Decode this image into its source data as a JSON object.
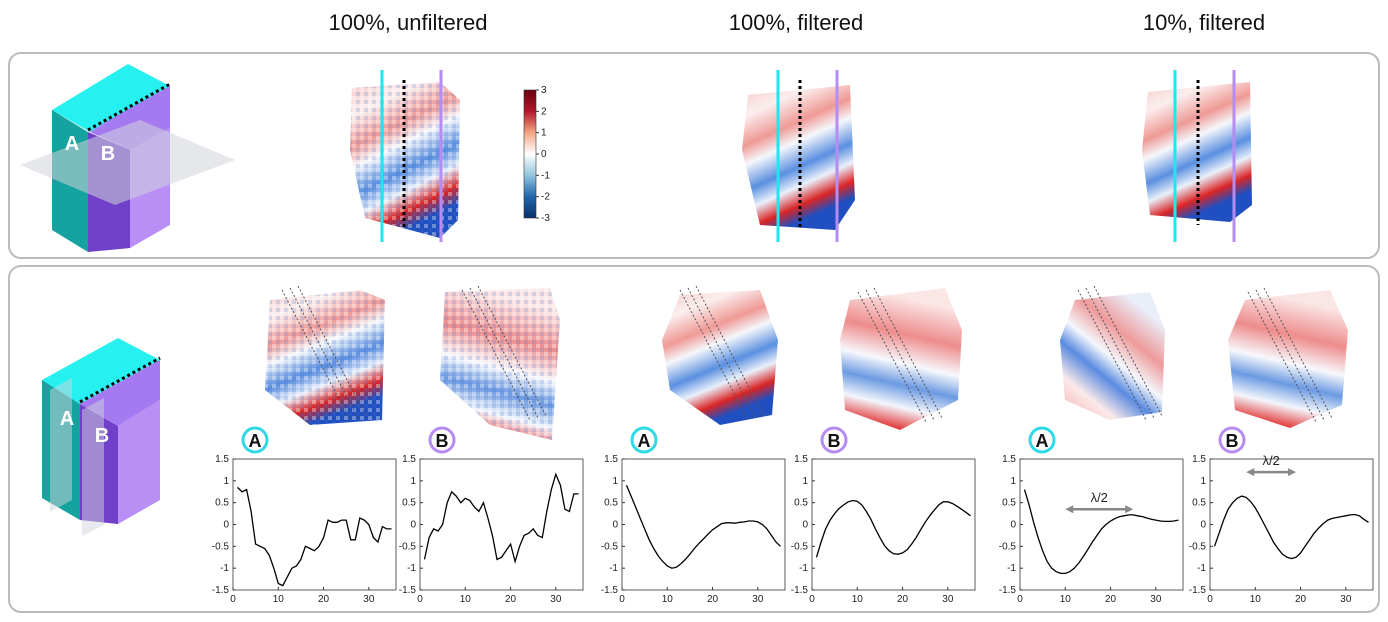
{
  "column_titles": [
    "100%, unfiltered",
    "100%, filtered",
    "10%, filtered"
  ],
  "cube_labels": {
    "top": [
      "A",
      "B"
    ],
    "bottom": [
      "A",
      "B"
    ]
  },
  "colorbar": {
    "lim": [
      -3,
      3
    ],
    "ticks": [
      3,
      2,
      1,
      0,
      -1,
      -2,
      -3
    ],
    "colors": [
      "#08306b",
      "#2166ac",
      "#92c5de",
      "#ffffff",
      "#f4a582",
      "#b2182b",
      "#67000d"
    ]
  },
  "chart_data": [
    {
      "type": "line",
      "label": "A",
      "label_color": "#2fd9e6",
      "color": "#000000",
      "xlim": [
        0,
        36
      ],
      "ylim": [
        -1.5,
        1.5
      ],
      "xticks": [
        0,
        10,
        20,
        30
      ],
      "yticks": [
        -1.5,
        -1,
        -0.5,
        0,
        0.5,
        1,
        1.5
      ],
      "x": [
        1,
        2,
        3,
        4,
        5,
        6,
        7,
        8,
        9,
        10,
        11,
        12,
        13,
        14,
        15,
        16,
        17,
        18,
        19,
        20,
        21,
        22,
        23,
        24,
        25,
        26,
        27,
        28,
        29,
        30,
        31,
        32,
        33,
        34,
        35
      ],
      "values": [
        0.85,
        0.75,
        0.8,
        0.3,
        -0.45,
        -0.5,
        -0.55,
        -0.7,
        -1.0,
        -1.35,
        -1.4,
        -1.2,
        -1.0,
        -0.95,
        -0.8,
        -0.5,
        -0.55,
        -0.6,
        -0.5,
        -0.3,
        0.1,
        0.05,
        0.05,
        0.1,
        0.1,
        -0.35,
        -0.35,
        0.15,
        0.1,
        0,
        -0.3,
        -0.4,
        -0.05,
        -0.1,
        -0.1
      ]
    },
    {
      "type": "line",
      "label": "B",
      "label_color": "#b48cf2",
      "color": "#000000",
      "xlim": [
        0,
        36
      ],
      "ylim": [
        -1.5,
        1.5
      ],
      "xticks": [
        0,
        10,
        20,
        30
      ],
      "yticks": [
        -1.5,
        -1,
        -0.5,
        0,
        0.5,
        1,
        1.5
      ],
      "x": [
        1,
        2,
        3,
        4,
        5,
        6,
        7,
        8,
        9,
        10,
        11,
        12,
        13,
        14,
        15,
        16,
        17,
        18,
        19,
        20,
        21,
        22,
        23,
        24,
        25,
        26,
        27,
        28,
        29,
        30,
        31,
        32,
        33,
        34,
        35
      ],
      "values": [
        -0.8,
        -0.3,
        -0.1,
        -0.15,
        0,
        0.5,
        0.75,
        0.65,
        0.5,
        0.6,
        0.55,
        0.4,
        0.3,
        0.5,
        0.15,
        -0.25,
        -0.8,
        -0.75,
        -0.6,
        -0.45,
        -0.85,
        -0.5,
        -0.25,
        -0.2,
        -0.1,
        -0.25,
        -0.3,
        0.3,
        0.8,
        1.15,
        0.9,
        0.35,
        0.3,
        0.7,
        0.7
      ]
    },
    {
      "type": "line",
      "label": "A",
      "label_color": "#2fd9e6",
      "color": "#000000",
      "xlim": [
        0,
        36
      ],
      "ylim": [
        -1.5,
        1.5
      ],
      "xticks": [
        0,
        10,
        20,
        30
      ],
      "yticks": [
        -1.5,
        -1,
        -0.5,
        0,
        0.5,
        1,
        1.5
      ],
      "x": [
        1,
        2,
        3,
        4,
        5,
        6,
        7,
        8,
        9,
        10,
        11,
        12,
        13,
        14,
        15,
        16,
        17,
        18,
        19,
        20,
        21,
        22,
        23,
        24,
        25,
        26,
        27,
        28,
        29,
        30,
        31,
        32,
        33,
        34,
        35
      ],
      "values": [
        0.9,
        0.65,
        0.4,
        0.15,
        -0.1,
        -0.35,
        -0.55,
        -0.72,
        -0.85,
        -0.95,
        -1.0,
        -0.98,
        -0.9,
        -0.8,
        -0.68,
        -0.55,
        -0.43,
        -0.33,
        -0.22,
        -0.12,
        -0.05,
        0.02,
        0.04,
        0.04,
        0.03,
        0.05,
        0.06,
        0.08,
        0.08,
        0.06,
        0.0,
        -0.1,
        -0.25,
        -0.4,
        -0.5
      ]
    },
    {
      "type": "line",
      "label": "B",
      "label_color": "#b48cf2",
      "color": "#000000",
      "xlim": [
        0,
        36
      ],
      "ylim": [
        -1.5,
        1.5
      ],
      "xticks": [
        0,
        10,
        20,
        30
      ],
      "yticks": [
        -1.5,
        -1,
        -0.5,
        0,
        0.5,
        1,
        1.5
      ],
      "x": [
        1,
        2,
        3,
        4,
        5,
        6,
        7,
        8,
        9,
        10,
        11,
        12,
        13,
        14,
        15,
        16,
        17,
        18,
        19,
        20,
        21,
        22,
        23,
        24,
        25,
        26,
        27,
        28,
        29,
        30,
        31,
        32,
        33,
        34,
        35
      ],
      "values": [
        -0.75,
        -0.4,
        -0.1,
        0.1,
        0.25,
        0.37,
        0.45,
        0.52,
        0.55,
        0.53,
        0.45,
        0.3,
        0.12,
        -0.1,
        -0.3,
        -0.48,
        -0.6,
        -0.67,
        -0.68,
        -0.65,
        -0.58,
        -0.45,
        -0.3,
        -0.12,
        0.05,
        0.2,
        0.33,
        0.45,
        0.52,
        0.52,
        0.48,
        0.42,
        0.35,
        0.28,
        0.2
      ]
    },
    {
      "type": "line",
      "label": "A",
      "label_color": "#2fd9e6",
      "color": "#000000",
      "xlim": [
        0,
        36
      ],
      "ylim": [
        -1.5,
        1.5
      ],
      "xticks": [
        0,
        10,
        20,
        30
      ],
      "yticks": [
        -1.5,
        -1,
        -0.5,
        0,
        0.5,
        1,
        1.5
      ],
      "x": [
        1,
        2,
        3,
        4,
        5,
        6,
        7,
        8,
        9,
        10,
        11,
        12,
        13,
        14,
        15,
        16,
        17,
        18,
        19,
        20,
        21,
        22,
        23,
        24,
        25,
        26,
        27,
        28,
        29,
        30,
        31,
        32,
        33,
        34,
        35
      ],
      "values": [
        0.8,
        0.45,
        0.05,
        -0.3,
        -0.6,
        -0.85,
        -1.0,
        -1.08,
        -1.12,
        -1.12,
        -1.08,
        -1.0,
        -0.88,
        -0.73,
        -0.57,
        -0.4,
        -0.25,
        -0.1,
        0.0,
        0.08,
        0.14,
        0.18,
        0.2,
        0.22,
        0.22,
        0.2,
        0.18,
        0.15,
        0.12,
        0.1,
        0.08,
        0.07,
        0.07,
        0.08,
        0.1
      ],
      "annotation": {
        "text": "λ/2",
        "x": [
          10,
          25
        ],
        "y": 0.35
      }
    },
    {
      "type": "line",
      "label": "B",
      "label_color": "#b48cf2",
      "color": "#000000",
      "xlim": [
        0,
        36
      ],
      "ylim": [
        -1.5,
        1.5
      ],
      "xticks": [
        0,
        10,
        20,
        30
      ],
      "yticks": [
        -1.5,
        -1,
        -0.5,
        0,
        0.5,
        1,
        1.5
      ],
      "x": [
        1,
        2,
        3,
        4,
        5,
        6,
        7,
        8,
        9,
        10,
        11,
        12,
        13,
        14,
        15,
        16,
        17,
        18,
        19,
        20,
        21,
        22,
        23,
        24,
        25,
        26,
        27,
        28,
        29,
        30,
        31,
        32,
        33,
        34,
        35
      ],
      "values": [
        -0.5,
        -0.2,
        0.1,
        0.35,
        0.5,
        0.6,
        0.65,
        0.62,
        0.52,
        0.38,
        0.2,
        0.0,
        -0.2,
        -0.4,
        -0.55,
        -0.68,
        -0.75,
        -0.78,
        -0.75,
        -0.65,
        -0.5,
        -0.35,
        -0.2,
        -0.08,
        0.02,
        0.1,
        0.14,
        0.16,
        0.18,
        0.2,
        0.22,
        0.23,
        0.2,
        0.12,
        0.05
      ],
      "annotation": {
        "text": "λ/2",
        "x": [
          8,
          19
        ],
        "y": 1.2
      }
    }
  ]
}
